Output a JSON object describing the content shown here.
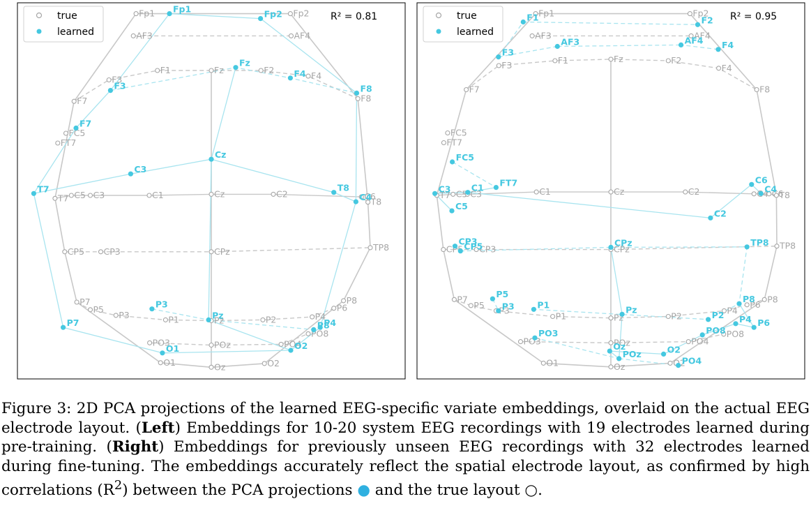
{
  "colors": {
    "true": "#a6a6a6",
    "learned": "#45c8e0",
    "grid": "#c8c8c8"
  },
  "chart_data": [
    {
      "type": "scatter",
      "panel": "left",
      "annotation": "R² = 0.81",
      "legend": {
        "entries": [
          "true",
          "learned"
        ],
        "placement": "top-left"
      },
      "xlim": [
        0,
        1
      ],
      "ylim": [
        0,
        1
      ],
      "true_points": [
        {
          "name": "Fp1",
          "x": 0.306,
          "y": 0.971
        },
        {
          "name": "Fp2",
          "x": 0.704,
          "y": 0.971
        },
        {
          "name": "AF3",
          "x": 0.299,
          "y": 0.912
        },
        {
          "name": "AF4",
          "x": 0.706,
          "y": 0.912
        },
        {
          "name": "F7",
          "x": 0.146,
          "y": 0.738
        },
        {
          "name": "F3",
          "x": 0.236,
          "y": 0.795
        },
        {
          "name": "F1",
          "x": 0.361,
          "y": 0.82
        },
        {
          "name": "Fz",
          "x": 0.5,
          "y": 0.82
        },
        {
          "name": "F2",
          "x": 0.628,
          "y": 0.82
        },
        {
          "name": "F4",
          "x": 0.75,
          "y": 0.805
        },
        {
          "name": "F8",
          "x": 0.878,
          "y": 0.745
        },
        {
          "name": "FC5",
          "x": 0.125,
          "y": 0.653
        },
        {
          "name": "FT7",
          "x": 0.104,
          "y": 0.627
        },
        {
          "name": "T7",
          "x": 0.097,
          "y": 0.48
        },
        {
          "name": "C5",
          "x": 0.139,
          "y": 0.488
        },
        {
          "name": "C3",
          "x": 0.188,
          "y": 0.488
        },
        {
          "name": "C1",
          "x": 0.34,
          "y": 0.488
        },
        {
          "name": "Cz",
          "x": 0.5,
          "y": 0.491
        },
        {
          "name": "C2",
          "x": 0.66,
          "y": 0.491
        },
        {
          "name": "C6",
          "x": 0.887,
          "y": 0.484
        },
        {
          "name": "T8",
          "x": 0.904,
          "y": 0.47
        },
        {
          "name": "CP5",
          "x": 0.122,
          "y": 0.338
        },
        {
          "name": "CP3",
          "x": 0.215,
          "y": 0.338
        },
        {
          "name": "CPz",
          "x": 0.5,
          "y": 0.338
        },
        {
          "name": "TP8",
          "x": 0.91,
          "y": 0.349
        },
        {
          "name": "P7",
          "x": 0.153,
          "y": 0.204
        },
        {
          "name": "P5",
          "x": 0.188,
          "y": 0.184
        },
        {
          "name": "P3",
          "x": 0.254,
          "y": 0.169
        },
        {
          "name": "P1",
          "x": 0.382,
          "y": 0.157
        },
        {
          "name": "Pz",
          "x": 0.5,
          "y": 0.155
        },
        {
          "name": "P2",
          "x": 0.633,
          "y": 0.157
        },
        {
          "name": "P4",
          "x": 0.76,
          "y": 0.165
        },
        {
          "name": "P6",
          "x": 0.816,
          "y": 0.188
        },
        {
          "name": "P8",
          "x": 0.841,
          "y": 0.208
        },
        {
          "name": "PO3",
          "x": 0.341,
          "y": 0.096
        },
        {
          "name": "POz",
          "x": 0.5,
          "y": 0.09
        },
        {
          "name": "PO4",
          "x": 0.68,
          "y": 0.092
        },
        {
          "name": "PO8",
          "x": 0.75,
          "y": 0.12
        },
        {
          "name": "O1",
          "x": 0.369,
          "y": 0.043
        },
        {
          "name": "Oz",
          "x": 0.5,
          "y": 0.031
        },
        {
          "name": "O2",
          "x": 0.637,
          "y": 0.041
        }
      ],
      "learned_points": [
        {
          "name": "Fp1",
          "x": 0.392,
          "y": 0.971
        },
        {
          "name": "Fp2",
          "x": 0.627,
          "y": 0.958
        },
        {
          "name": "Fz",
          "x": 0.563,
          "y": 0.828
        },
        {
          "name": "F3",
          "x": 0.24,
          "y": 0.767
        },
        {
          "name": "F4",
          "x": 0.704,
          "y": 0.8
        },
        {
          "name": "F8",
          "x": 0.875,
          "y": 0.76
        },
        {
          "name": "F7",
          "x": 0.151,
          "y": 0.667
        },
        {
          "name": "Cz",
          "x": 0.5,
          "y": 0.584
        },
        {
          "name": "C3",
          "x": 0.292,
          "y": 0.545
        },
        {
          "name": "T7",
          "x": 0.042,
          "y": 0.493
        },
        {
          "name": "T8",
          "x": 0.816,
          "y": 0.496
        },
        {
          "name": "C4",
          "x": 0.873,
          "y": 0.471
        },
        {
          "name": "P3",
          "x": 0.347,
          "y": 0.186
        },
        {
          "name": "Pz",
          "x": 0.493,
          "y": 0.157
        },
        {
          "name": "P7",
          "x": 0.118,
          "y": 0.137
        },
        {
          "name": "P8",
          "x": 0.764,
          "y": 0.131
        },
        {
          "name": "P4",
          "x": 0.781,
          "y": 0.137
        },
        {
          "name": "O2",
          "x": 0.705,
          "y": 0.076
        },
        {
          "name": "O1",
          "x": 0.374,
          "y": 0.069
        }
      ]
    },
    {
      "type": "scatter",
      "panel": "right",
      "annotation": "R² = 0.95",
      "legend": {
        "entries": [
          "true",
          "learned"
        ],
        "placement": "top-left"
      },
      "xlim": [
        0,
        1
      ],
      "ylim": [
        0,
        1
      ],
      "true_points": [
        {
          "name": "Fp1",
          "x": 0.306,
          "y": 0.971
        },
        {
          "name": "Fp2",
          "x": 0.704,
          "y": 0.971
        },
        {
          "name": "AF3",
          "x": 0.297,
          "y": 0.912
        },
        {
          "name": "AF4",
          "x": 0.707,
          "y": 0.912
        },
        {
          "name": "F7",
          "x": 0.127,
          "y": 0.769
        },
        {
          "name": "F3",
          "x": 0.211,
          "y": 0.833
        },
        {
          "name": "F1",
          "x": 0.356,
          "y": 0.846
        },
        {
          "name": "Fz",
          "x": 0.5,
          "y": 0.85
        },
        {
          "name": "F2",
          "x": 0.648,
          "y": 0.846
        },
        {
          "name": "F4",
          "x": 0.778,
          "y": 0.826
        },
        {
          "name": "F8",
          "x": 0.876,
          "y": 0.769
        },
        {
          "name": "FC5",
          "x": 0.079,
          "y": 0.654
        },
        {
          "name": "FT7",
          "x": 0.069,
          "y": 0.628
        },
        {
          "name": "T7",
          "x": 0.051,
          "y": 0.488
        },
        {
          "name": "C5",
          "x": 0.093,
          "y": 0.491
        },
        {
          "name": "C3",
          "x": 0.13,
          "y": 0.491
        },
        {
          "name": "C1",
          "x": 0.308,
          "y": 0.497
        },
        {
          "name": "Cz",
          "x": 0.5,
          "y": 0.497
        },
        {
          "name": "C2",
          "x": 0.692,
          "y": 0.497
        },
        {
          "name": "C4",
          "x": 0.869,
          "y": 0.492
        },
        {
          "name": "C6",
          "x": 0.908,
          "y": 0.492
        },
        {
          "name": "T8",
          "x": 0.927,
          "y": 0.488
        },
        {
          "name": "CP5",
          "x": 0.068,
          "y": 0.344
        },
        {
          "name": "CP3",
          "x": 0.153,
          "y": 0.344
        },
        {
          "name": "CPz",
          "x": 0.5,
          "y": 0.344
        },
        {
          "name": "TP8",
          "x": 0.928,
          "y": 0.353
        },
        {
          "name": "P7",
          "x": 0.096,
          "y": 0.211
        },
        {
          "name": "P5",
          "x": 0.139,
          "y": 0.195
        },
        {
          "name": "P3",
          "x": 0.204,
          "y": 0.181
        },
        {
          "name": "P1",
          "x": 0.35,
          "y": 0.166
        },
        {
          "name": "Pz",
          "x": 0.5,
          "y": 0.162
        },
        {
          "name": "P2",
          "x": 0.648,
          "y": 0.166
        },
        {
          "name": "P4",
          "x": 0.792,
          "y": 0.181
        },
        {
          "name": "P6",
          "x": 0.851,
          "y": 0.197
        },
        {
          "name": "P8",
          "x": 0.896,
          "y": 0.211
        },
        {
          "name": "PO3",
          "x": 0.267,
          "y": 0.099
        },
        {
          "name": "POz",
          "x": 0.5,
          "y": 0.096
        },
        {
          "name": "PO4",
          "x": 0.7,
          "y": 0.099
        },
        {
          "name": "PO8",
          "x": 0.791,
          "y": 0.119
        },
        {
          "name": "O1",
          "x": 0.326,
          "y": 0.042
        },
        {
          "name": "Oz",
          "x": 0.5,
          "y": 0.032
        },
        {
          "name": "O2",
          "x": 0.653,
          "y": 0.042
        }
      ],
      "learned_points": [
        {
          "name": "F1",
          "x": 0.274,
          "y": 0.949
        },
        {
          "name": "F2",
          "x": 0.724,
          "y": 0.942
        },
        {
          "name": "AF3",
          "x": 0.362,
          "y": 0.884
        },
        {
          "name": "AF4",
          "x": 0.681,
          "y": 0.888
        },
        {
          "name": "F4",
          "x": 0.777,
          "y": 0.876
        },
        {
          "name": "F3",
          "x": 0.21,
          "y": 0.856
        },
        {
          "name": "FC5",
          "x": 0.091,
          "y": 0.577
        },
        {
          "name": "FT7",
          "x": 0.204,
          "y": 0.509
        },
        {
          "name": "C6",
          "x": 0.863,
          "y": 0.517
        },
        {
          "name": "C4",
          "x": 0.887,
          "y": 0.493
        },
        {
          "name": "C3",
          "x": 0.046,
          "y": 0.493
        },
        {
          "name": "C1",
          "x": 0.131,
          "y": 0.496
        },
        {
          "name": "C5",
          "x": 0.09,
          "y": 0.447
        },
        {
          "name": "C2",
          "x": 0.757,
          "y": 0.428
        },
        {
          "name": "CP3",
          "x": 0.098,
          "y": 0.353
        },
        {
          "name": "CP5",
          "x": 0.112,
          "y": 0.34
        },
        {
          "name": "CPz",
          "x": 0.5,
          "y": 0.35
        },
        {
          "name": "TP8",
          "x": 0.851,
          "y": 0.351
        },
        {
          "name": "P5",
          "x": 0.195,
          "y": 0.213
        },
        {
          "name": "P3",
          "x": 0.21,
          "y": 0.181
        },
        {
          "name": "P1",
          "x": 0.301,
          "y": 0.185
        },
        {
          "name": "Pz",
          "x": 0.529,
          "y": 0.172
        },
        {
          "name": "P8",
          "x": 0.831,
          "y": 0.2
        },
        {
          "name": "P2",
          "x": 0.751,
          "y": 0.158
        },
        {
          "name": "P4",
          "x": 0.822,
          "y": 0.147
        },
        {
          "name": "P6",
          "x": 0.869,
          "y": 0.137
        },
        {
          "name": "PO8",
          "x": 0.736,
          "y": 0.117
        },
        {
          "name": "PO3",
          "x": 0.304,
          "y": 0.109
        },
        {
          "name": "Oz",
          "x": 0.497,
          "y": 0.074
        },
        {
          "name": "O2",
          "x": 0.636,
          "y": 0.066
        },
        {
          "name": "POz",
          "x": 0.521,
          "y": 0.054
        },
        {
          "name": "PO4",
          "x": 0.674,
          "y": 0.036
        }
      ]
    }
  ],
  "caption": {
    "prefix": "Figure 3: 2D PCA projections of the learned EEG-specific variate embeddings, overlaid on the actual EEG electrode layout. (",
    "left_bold": "Left",
    "middle": ") Embeddings for 10-20 system EEG recordings with 19 electrodes learned during pre-training. (",
    "right_bold": "Right",
    "tail": ") Embeddings for previously unseen EEG recordings with 32 electrodes learned during fine-tuning. The embeddings accurately reflect the spatial electrode layout, as confirmed by high correlations (R",
    "sup": "2",
    "tail2": ") between the PCA projections ",
    "dot_symbol": "●",
    "tail3": " and the true layout ",
    "circle_symbol": "○",
    "end": "."
  }
}
